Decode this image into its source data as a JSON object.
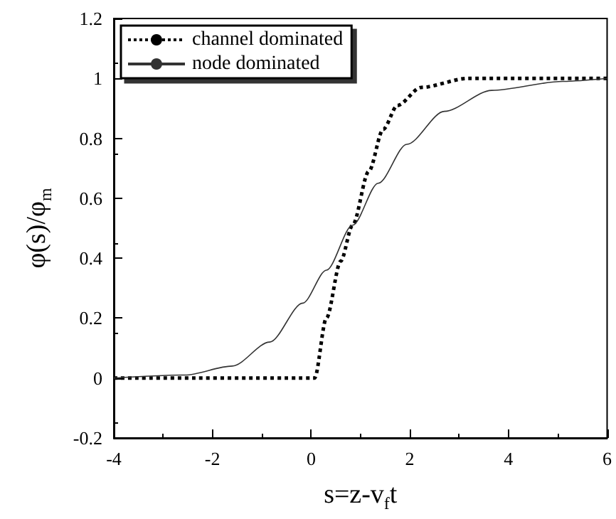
{
  "chart_data": {
    "type": "line",
    "xlabel": "s=z-v$_{f}$t",
    "ylabel": "φ(s)/φ$_{m}$",
    "xlim": [
      -4,
      6
    ],
    "xticks": [
      -4,
      -2,
      0,
      2,
      4,
      6
    ],
    "ylim": [
      -0.2,
      1.2
    ],
    "yticks": [
      "-0.2",
      0,
      "0.2",
      "0.4",
      "0.6",
      "0.8",
      1,
      "1.2"
    ],
    "grid": false,
    "legend": "top left",
    "marker": "none",
    "series": [
      {
        "name": "channel dominated",
        "color": "#000000",
        "line_style": "dotted",
        "x": [
          -4,
          0.07,
          0.31,
          0.6,
          0.84,
          1.17,
          1.46,
          1.75,
          2.23,
          3.18,
          6
        ],
        "values": [
          0,
          0,
          0.2,
          0.39,
          0.51,
          0.69,
          0.83,
          0.91,
          0.97,
          1.0,
          1.0
        ]
      },
      {
        "name": "node dominated",
        "color": "#333333",
        "line_style": "solid",
        "x": [
          -4,
          -2.56,
          -1.6,
          -0.84,
          -0.17,
          0.31,
          0.84,
          1.36,
          1.94,
          2.7,
          3.66,
          5.1,
          6
        ],
        "values": [
          0,
          0.01,
          0.04,
          0.12,
          0.25,
          0.36,
          0.51,
          0.65,
          0.78,
          0.89,
          0.96,
          0.99,
          1.0
        ]
      }
    ]
  }
}
